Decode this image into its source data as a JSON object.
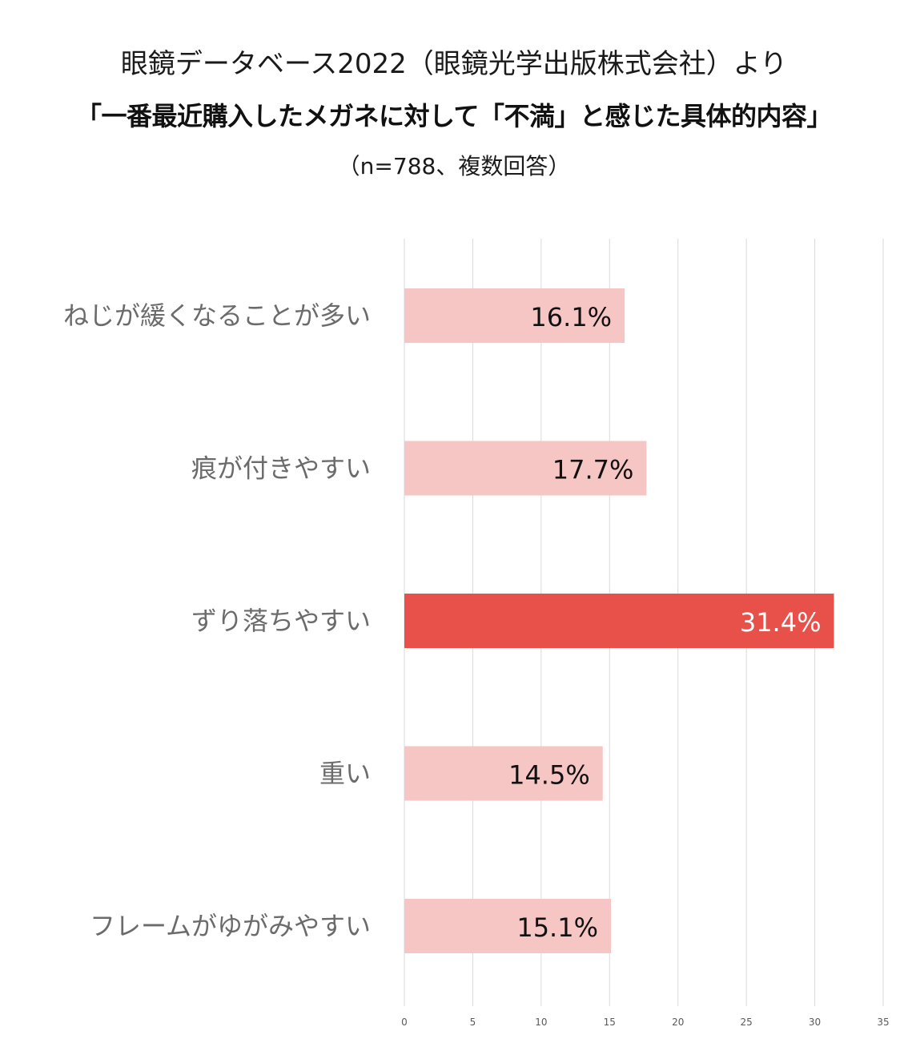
{
  "header": {
    "title": "眼鏡データベース2022（眼鏡光学出版株式会社）より",
    "subtitle": "「一番最近購入したメガネに対して「不満」と感じた具体的内容」",
    "note": "（n=788、複数回答）"
  },
  "chart_data": {
    "type": "bar",
    "orientation": "horizontal",
    "categories": [
      "ねじが緩くなることが多い",
      "痕が付きやすい",
      "ずり落ちやすい",
      "重い",
      "フレームがゆがみやすい"
    ],
    "values": [
      16.1,
      17.7,
      31.4,
      14.5,
      15.1
    ],
    "value_labels": [
      "16.1%",
      "17.7%",
      "31.4%",
      "14.5%",
      "15.1%"
    ],
    "highlight_index": 2,
    "xlim": [
      0,
      35
    ],
    "xticks": [
      0,
      5,
      10,
      15,
      20,
      25,
      30,
      35
    ],
    "grid": true,
    "colors": {
      "bar": "#f5c6c4",
      "bar_highlight": "#e8504a",
      "label": "#111111",
      "label_highlight": "#ffffff",
      "grid": "#d9d9d9"
    }
  }
}
